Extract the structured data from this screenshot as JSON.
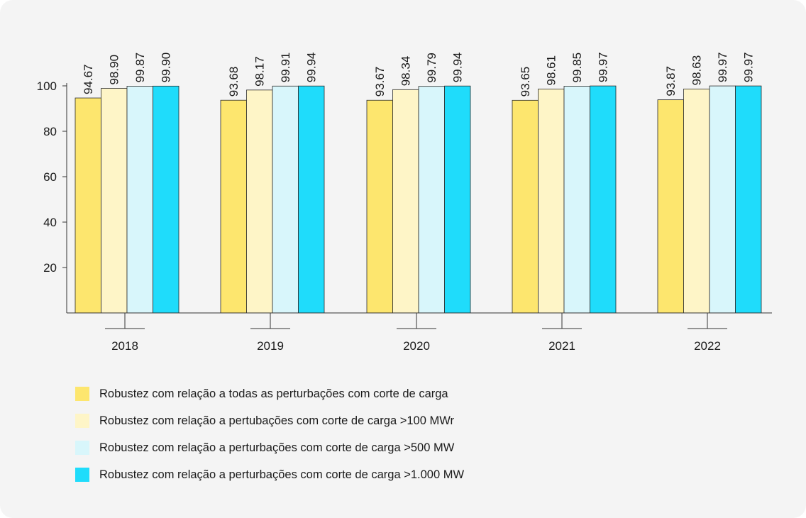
{
  "chart_data": {
    "type": "bar",
    "categories": [
      "2018",
      "2019",
      "2020",
      "2021",
      "2022"
    ],
    "ylim": [
      0,
      100
    ],
    "yticks": [
      20,
      40,
      60,
      80,
      100
    ],
    "series": [
      {
        "name": "Robustez com relação a todas as perturbações com corte de carga",
        "color": "#fde66e",
        "values": [
          94.67,
          93.68,
          93.67,
          93.65,
          93.87
        ],
        "labels": [
          "94.67",
          "93.68",
          "93.67",
          "93.65",
          "93.87"
        ]
      },
      {
        "name": "Robustez com relação a pertubações com corte de carga >100 MWr",
        "color": "#fef5c7",
        "values": [
          98.9,
          98.17,
          98.34,
          98.61,
          98.63
        ],
        "labels": [
          "98.90",
          "98.17",
          "98.34",
          "98.61",
          "98.63"
        ]
      },
      {
        "name": "Robustez com relação a perturbações com corte de carga >500 MW",
        "color": "#d8f6fb",
        "values": [
          99.87,
          99.91,
          99.79,
          99.85,
          99.97
        ],
        "labels": [
          "99.87",
          "99.91",
          "99.79",
          "99.85",
          "99.97"
        ]
      },
      {
        "name": "Robustez com relação a perturbações com corte de carga >1.000 MW",
        "color": "#1fdcfb",
        "values": [
          99.9,
          99.94,
          99.94,
          99.97,
          99.97
        ],
        "labels": [
          "99.90",
          "99.94",
          "99.94",
          "99.97",
          "99.97"
        ]
      }
    ],
    "xlabel": "",
    "ylabel": "",
    "grid": false,
    "legend_position": "bottom-left"
  }
}
